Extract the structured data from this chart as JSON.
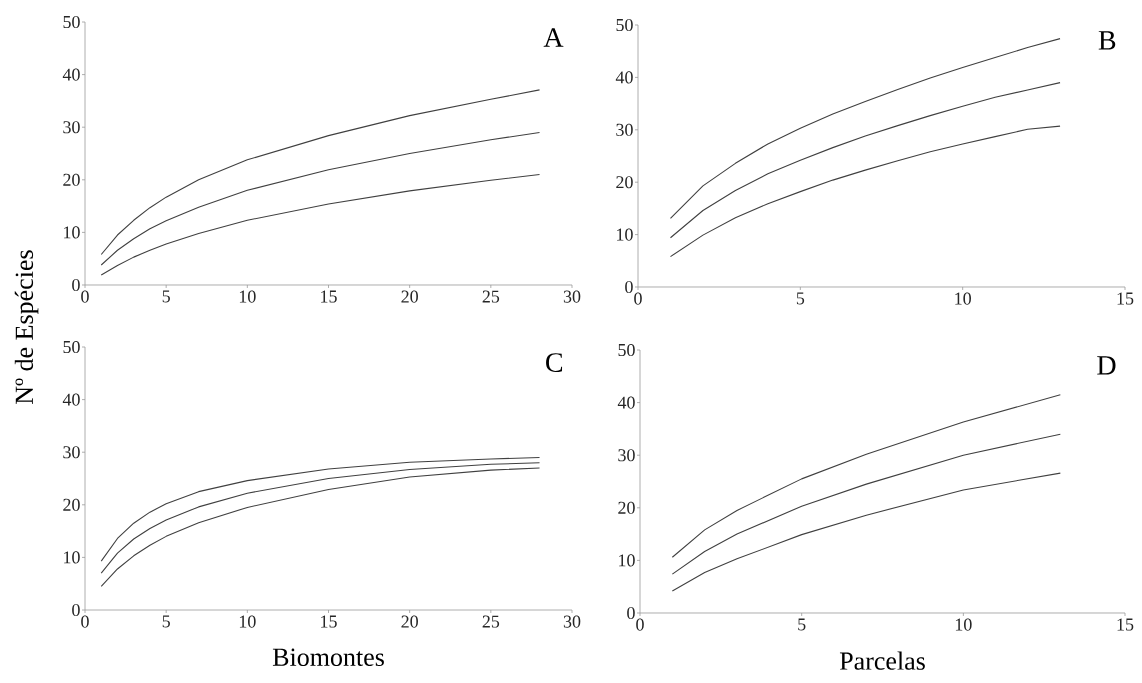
{
  "chart_data": [
    {
      "type": "line",
      "ylabel": "Nº de Espécies",
      "annotations": [
        "A"
      ],
      "xlim": [
        0,
        30
      ],
      "ylim": [
        0,
        50
      ],
      "xticks": [
        0,
        5,
        10,
        15,
        20,
        25,
        30
      ],
      "yticks": [
        0,
        10,
        20,
        30,
        40,
        50
      ],
      "series": [
        {
          "color": "#404040",
          "x": [
            1,
            2,
            3,
            4,
            5,
            7,
            10,
            15,
            20,
            25,
            28
          ],
          "values": [
            5.8,
            9.5,
            12.3,
            14.7,
            16.7,
            20,
            23.8,
            28.4,
            32.2,
            35.3,
            37.1
          ]
        },
        {
          "color": "#404040",
          "x": [
            1,
            2,
            3,
            4,
            5,
            7,
            10,
            15,
            20,
            25,
            28
          ],
          "values": [
            3.8,
            6.6,
            8.8,
            10.7,
            12.2,
            14.8,
            18,
            21.9,
            25,
            27.6,
            29
          ]
        },
        {
          "color": "#404040",
          "x": [
            1,
            2,
            3,
            4,
            5,
            7,
            10,
            15,
            20,
            25,
            28
          ],
          "values": [
            1.9,
            3.7,
            5.3,
            6.6,
            7.8,
            9.8,
            12.3,
            15.4,
            17.9,
            19.9,
            21
          ]
        }
      ]
    },
    {
      "type": "line",
      "annotations": [
        "B"
      ],
      "xlim": [
        0,
        15
      ],
      "ylim": [
        0,
        50
      ],
      "xticks": [
        0,
        5,
        10,
        15
      ],
      "yticks": [
        0,
        10,
        20,
        30,
        40,
        50
      ],
      "series": [
        {
          "color": "#404040",
          "x": [
            1,
            2,
            3,
            4,
            5,
            6,
            7,
            8,
            9,
            10,
            11,
            12,
            13
          ],
          "values": [
            13.1,
            19.3,
            23.6,
            27.3,
            30.3,
            33,
            35.4,
            37.7,
            39.9,
            41.9,
            43.8,
            45.7,
            47.4
          ]
        },
        {
          "color": "#404040",
          "x": [
            1,
            2,
            3,
            4,
            5,
            6,
            7,
            8,
            9,
            10,
            11,
            12,
            13
          ],
          "values": [
            9.4,
            14.6,
            18.4,
            21.6,
            24.2,
            26.6,
            28.8,
            30.8,
            32.7,
            34.5,
            36.2,
            37.6,
            39
          ]
        },
        {
          "color": "#404040",
          "x": [
            1,
            2,
            3,
            4,
            5,
            6,
            7,
            8,
            9,
            10,
            11,
            12,
            13
          ],
          "values": [
            5.8,
            9.9,
            13.2,
            15.9,
            18.2,
            20.4,
            22.3,
            24.1,
            25.8,
            27.3,
            28.7,
            30.1,
            30.7
          ]
        }
      ]
    },
    {
      "type": "line",
      "xlabel": "Biomontes",
      "annotations": [
        "C"
      ],
      "xlim": [
        0,
        30
      ],
      "ylim": [
        0,
        50
      ],
      "xticks": [
        0,
        5,
        10,
        15,
        20,
        25,
        30
      ],
      "yticks": [
        0,
        10,
        20,
        30,
        40,
        50
      ],
      "series": [
        {
          "color": "#404040",
          "x": [
            1,
            2,
            3,
            4,
            5,
            7,
            10,
            15,
            20,
            25,
            28
          ],
          "values": [
            9.3,
            13.6,
            16.5,
            18.6,
            20.2,
            22.5,
            24.6,
            26.8,
            28.1,
            28.7,
            29
          ]
        },
        {
          "color": "#404040",
          "x": [
            1,
            2,
            3,
            4,
            5,
            7,
            10,
            15,
            20,
            25,
            28
          ],
          "values": [
            7,
            10.8,
            13.5,
            15.5,
            17.1,
            19.6,
            22.2,
            25,
            26.7,
            27.7,
            28
          ]
        },
        {
          "color": "#404040",
          "x": [
            1,
            2,
            3,
            4,
            5,
            7,
            10,
            15,
            20,
            25,
            28
          ],
          "values": [
            4.5,
            7.8,
            10.3,
            12.3,
            14,
            16.6,
            19.5,
            22.9,
            25.3,
            26.6,
            27
          ]
        }
      ]
    },
    {
      "type": "line",
      "xlabel": "Parcelas",
      "annotations": [
        "D"
      ],
      "xlim": [
        0,
        15
      ],
      "ylim": [
        0,
        50
      ],
      "xticks": [
        0,
        5,
        10,
        15
      ],
      "yticks": [
        0,
        10,
        20,
        30,
        40,
        50
      ],
      "series": [
        {
          "color": "#404040",
          "x": [
            1,
            2,
            3,
            5,
            7,
            10,
            13
          ],
          "values": [
            10.6,
            15.8,
            19.5,
            25.5,
            30.2,
            36.3,
            41.5
          ]
        },
        {
          "color": "#404040",
          "x": [
            1,
            2,
            3,
            5,
            7,
            10,
            13
          ],
          "values": [
            7.4,
            11.7,
            15,
            20.3,
            24.5,
            30,
            34
          ]
        },
        {
          "color": "#404040",
          "x": [
            1,
            2,
            3,
            5,
            7,
            10,
            13
          ],
          "values": [
            4.2,
            7.7,
            10.3,
            14.9,
            18.6,
            23.4,
            26.6
          ]
        }
      ]
    }
  ]
}
